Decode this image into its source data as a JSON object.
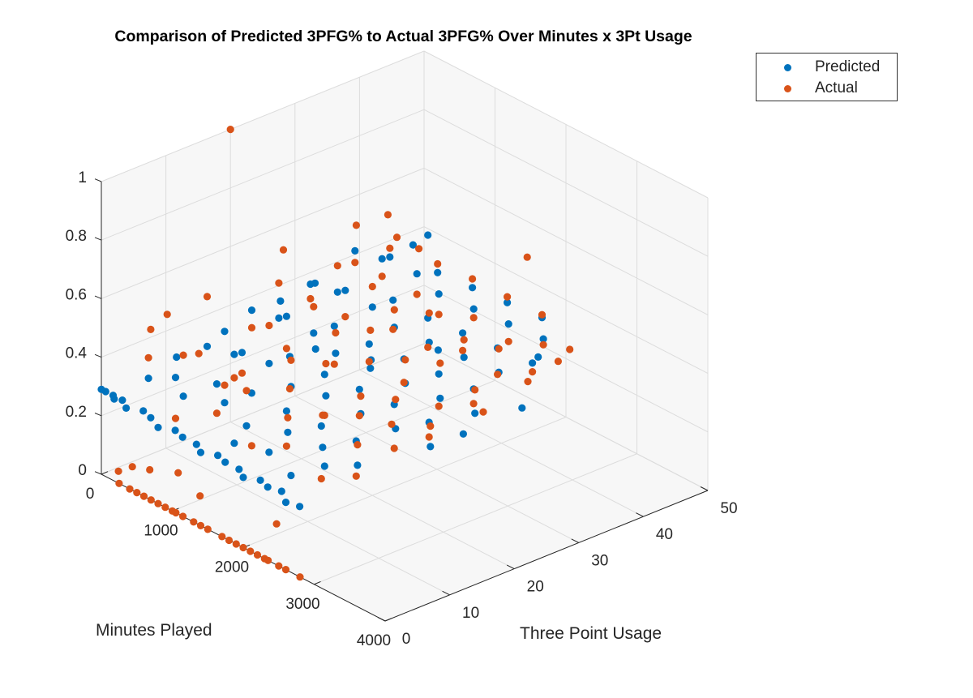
{
  "chart_data": {
    "type": "scatter",
    "title": "Comparison of Predicted 3PFG% to Actual 3PFG% Over Minutes x 3Pt Usage",
    "xlabel": "Minutes Played",
    "ylabel": "Three Point Usage",
    "zlabel": "",
    "xlim": [
      0,
      4000
    ],
    "ylim": [
      0,
      50
    ],
    "zlim": [
      0,
      1
    ],
    "xticks": [
      "0",
      "1000",
      "2000",
      "3000",
      "4000"
    ],
    "yticks": [
      "0",
      "10",
      "20",
      "30",
      "40",
      "50"
    ],
    "zticks": [
      "0",
      "0.2",
      "0.4",
      "0.6",
      "0.8",
      "1"
    ],
    "grid": true,
    "legend_position": "top-right",
    "series": [
      {
        "name": "Predicted",
        "color": "#0072BD",
        "points": [
          [
            0,
            0,
            0.29
          ],
          [
            60,
            0,
            0.29
          ],
          [
            120,
            0.5,
            0.28
          ],
          [
            180,
            0,
            0.28
          ],
          [
            250,
            0.5,
            0.28
          ],
          [
            350,
            0,
            0.27
          ],
          [
            500,
            1,
            0.27
          ],
          [
            650,
            0.5,
            0.27
          ],
          [
            800,
            0,
            0.26
          ],
          [
            950,
            1,
            0.26
          ],
          [
            1100,
            0.5,
            0.26
          ],
          [
            1250,
            1,
            0.25
          ],
          [
            1400,
            0,
            0.25
          ],
          [
            1550,
            1,
            0.25
          ],
          [
            1700,
            0.5,
            0.25
          ],
          [
            1850,
            1,
            0.24
          ],
          [
            2000,
            0,
            0.24
          ],
          [
            2150,
            1,
            0.24
          ],
          [
            2300,
            0.5,
            0.24
          ],
          [
            2450,
            1,
            0.24
          ],
          [
            2600,
            0,
            0.23
          ],
          [
            2750,
            0.5,
            0.23
          ],
          [
            300,
            4,
            0.33
          ],
          [
            500,
            6,
            0.34
          ],
          [
            700,
            5,
            0.31
          ],
          [
            900,
            8,
            0.35
          ],
          [
            1100,
            7,
            0.32
          ],
          [
            1300,
            9,
            0.36
          ],
          [
            1500,
            6,
            0.3
          ],
          [
            1700,
            10,
            0.34
          ],
          [
            1900,
            8,
            0.31
          ],
          [
            2100,
            11,
            0.33
          ],
          [
            2300,
            9,
            0.3
          ],
          [
            2500,
            12,
            0.32
          ],
          [
            2700,
            10,
            0.28
          ],
          [
            400,
            12,
            0.38
          ],
          [
            600,
            14,
            0.36
          ],
          [
            800,
            13,
            0.4
          ],
          [
            1000,
            15,
            0.37
          ],
          [
            1200,
            16,
            0.41
          ],
          [
            1400,
            14,
            0.35
          ],
          [
            1600,
            17,
            0.39
          ],
          [
            1800,
            15,
            0.36
          ],
          [
            2000,
            18,
            0.38
          ],
          [
            2200,
            16,
            0.34
          ],
          [
            2400,
            19,
            0.37
          ],
          [
            2600,
            17,
            0.33
          ],
          [
            2800,
            20,
            0.35
          ],
          [
            3000,
            18,
            0.31
          ],
          [
            300,
            20,
            0.42
          ],
          [
            500,
            22,
            0.4
          ],
          [
            700,
            21,
            0.44
          ],
          [
            900,
            23,
            0.39
          ],
          [
            1100,
            24,
            0.43
          ],
          [
            1300,
            22,
            0.38
          ],
          [
            1500,
            25,
            0.41
          ],
          [
            1700,
            23,
            0.37
          ],
          [
            1900,
            26,
            0.4
          ],
          [
            2100,
            24,
            0.36
          ],
          [
            2300,
            27,
            0.39
          ],
          [
            2500,
            25,
            0.35
          ],
          [
            2700,
            28,
            0.38
          ],
          [
            2900,
            26,
            0.34
          ],
          [
            400,
            28,
            0.45
          ],
          [
            600,
            30,
            0.43
          ],
          [
            800,
            29,
            0.47
          ],
          [
            1000,
            31,
            0.42
          ],
          [
            1200,
            32,
            0.46
          ],
          [
            1400,
            30,
            0.41
          ],
          [
            1600,
            33,
            0.44
          ],
          [
            1800,
            31,
            0.4
          ],
          [
            2000,
            34,
            0.43
          ],
          [
            2200,
            32,
            0.39
          ],
          [
            2400,
            35,
            0.42
          ],
          [
            2600,
            33,
            0.38
          ],
          [
            2800,
            36,
            0.41
          ],
          [
            300,
            36,
            0.48
          ],
          [
            500,
            38,
            0.46
          ],
          [
            700,
            37,
            0.5
          ],
          [
            900,
            39,
            0.45
          ],
          [
            1100,
            40,
            0.47
          ],
          [
            1300,
            38,
            0.44
          ],
          [
            1500,
            41,
            0.46
          ],
          [
            1700,
            39,
            0.43
          ],
          [
            1900,
            42,
            0.45
          ],
          [
            2100,
            40,
            0.42
          ],
          [
            2300,
            43,
            0.44
          ],
          [
            2500,
            41,
            0.41
          ],
          [
            300,
            45,
            0.42
          ],
          [
            100,
            32,
            0.38
          ],
          [
            100,
            18,
            0.34
          ],
          [
            150,
            10,
            0.33
          ],
          [
            250,
            25,
            0.4
          ],
          [
            1600,
            3,
            0.28
          ],
          [
            2000,
            4,
            0.29
          ],
          [
            2400,
            3,
            0.27
          ],
          [
            2600,
            6,
            0.3
          ],
          [
            2200,
            28,
            0.45
          ],
          [
            1800,
            22,
            0.42
          ],
          [
            1200,
            20,
            0.4
          ],
          [
            3100,
            22,
            0.33
          ],
          [
            3200,
            30,
            0.36
          ],
          [
            2700,
            38,
            0.4
          ],
          [
            600,
            44,
            0.5
          ]
        ]
      },
      {
        "name": "Actual",
        "color": "#D95319",
        "points": [
          [
            250,
            0,
            0
          ],
          [
            400,
            0,
            0
          ],
          [
            500,
            0,
            0
          ],
          [
            600,
            0,
            0
          ],
          [
            700,
            0,
            0
          ],
          [
            800,
            0,
            0
          ],
          [
            900,
            0,
            0
          ],
          [
            1000,
            0,
            0
          ],
          [
            1050,
            0,
            0
          ],
          [
            1150,
            0,
            0
          ],
          [
            1300,
            0,
            0
          ],
          [
            1400,
            0,
            0
          ],
          [
            1500,
            0,
            0
          ],
          [
            1700,
            0,
            0
          ],
          [
            1800,
            0,
            0
          ],
          [
            1900,
            0,
            0
          ],
          [
            2000,
            0,
            0
          ],
          [
            2100,
            0,
            0
          ],
          [
            2200,
            0,
            0
          ],
          [
            2300,
            0,
            0
          ],
          [
            2350,
            0,
            0
          ],
          [
            2500,
            0,
            0
          ],
          [
            2600,
            0,
            0
          ],
          [
            2800,
            0,
            0
          ],
          [
            2470,
            0,
            0.14
          ],
          [
            150,
            1,
            0.02
          ],
          [
            300,
            1.5,
            0.05
          ],
          [
            500,
            2,
            0.06
          ],
          [
            900,
            2,
            0.1
          ],
          [
            1300,
            1,
            0.08
          ],
          [
            0,
            20,
            1.0
          ],
          [
            500,
            34,
            0.61
          ],
          [
            800,
            37,
            0.58
          ],
          [
            300,
            4,
            0.4
          ],
          [
            500,
            6,
            0.2
          ],
          [
            700,
            5,
            0.45
          ],
          [
            900,
            8,
            0.25
          ],
          [
            1100,
            7,
            0.38
          ],
          [
            1300,
            9,
            0.18
          ],
          [
            1500,
            6,
            0.42
          ],
          [
            1700,
            10,
            0.22
          ],
          [
            1900,
            8,
            0.36
          ],
          [
            2100,
            11,
            0.15
          ],
          [
            2300,
            9,
            0.41
          ],
          [
            2500,
            12,
            0.2
          ],
          [
            2700,
            10,
            0.35
          ],
          [
            400,
            12,
            0.55
          ],
          [
            600,
            14,
            0.28
          ],
          [
            800,
            13,
            0.33
          ],
          [
            1000,
            15,
            0.5
          ],
          [
            1200,
            16,
            0.3
          ],
          [
            1400,
            14,
            0.44
          ],
          [
            1600,
            17,
            0.25
          ],
          [
            1800,
            15,
            0.47
          ],
          [
            2000,
            18,
            0.29
          ],
          [
            2200,
            16,
            0.4
          ],
          [
            2400,
            19,
            0.22
          ],
          [
            2600,
            17,
            0.43
          ],
          [
            2800,
            20,
            0.3
          ],
          [
            3000,
            18,
            0.38
          ],
          [
            300,
            20,
            0.36
          ],
          [
            500,
            22,
            0.52
          ],
          [
            700,
            21,
            0.33
          ],
          [
            900,
            23,
            0.48
          ],
          [
            1100,
            24,
            0.3
          ],
          [
            1300,
            22,
            0.45
          ],
          [
            1500,
            25,
            0.35
          ],
          [
            1700,
            23,
            0.5
          ],
          [
            1900,
            26,
            0.32
          ],
          [
            2100,
            24,
            0.44
          ],
          [
            2300,
            27,
            0.28
          ],
          [
            2500,
            25,
            0.47
          ],
          [
            2700,
            28,
            0.33
          ],
          [
            2900,
            26,
            0.42
          ],
          [
            400,
            28,
            0.4
          ],
          [
            600,
            30,
            0.52
          ],
          [
            800,
            29,
            0.38
          ],
          [
            1000,
            31,
            0.49
          ],
          [
            1200,
            32,
            0.36
          ],
          [
            1400,
            30,
            0.47
          ],
          [
            1600,
            33,
            0.34
          ],
          [
            1800,
            31,
            0.5
          ],
          [
            2000,
            34,
            0.37
          ],
          [
            2200,
            32,
            0.45
          ],
          [
            2400,
            35,
            0.33
          ],
          [
            2600,
            33,
            0.46
          ],
          [
            2800,
            36,
            0.38
          ],
          [
            300,
            36,
            0.44
          ],
          [
            500,
            38,
            0.4
          ],
          [
            700,
            37,
            0.53
          ],
          [
            900,
            39,
            0.38
          ],
          [
            1100,
            40,
            0.5
          ],
          [
            1300,
            38,
            0.37
          ],
          [
            1500,
            41,
            0.49
          ],
          [
            1700,
            39,
            0.4
          ],
          [
            1900,
            42,
            0.47
          ],
          [
            2100,
            40,
            0.36
          ],
          [
            2300,
            43,
            0.45
          ],
          [
            2500,
            41,
            0.39
          ],
          [
            200,
            8,
            0.5
          ],
          [
            100,
            14,
            0.3
          ],
          [
            200,
            26,
            0.56
          ],
          [
            150,
            6,
            0.46
          ],
          [
            3000,
            12,
            0.44
          ],
          [
            3200,
            24,
            0.4
          ],
          [
            3100,
            32,
            0.42
          ],
          [
            2800,
            40,
            0.38
          ],
          [
            2600,
            44,
            0.36
          ],
          [
            2000,
            44,
            0.6
          ],
          [
            1200,
            36,
            0.6
          ],
          [
            400,
            40,
            0.58
          ]
        ]
      }
    ]
  }
}
